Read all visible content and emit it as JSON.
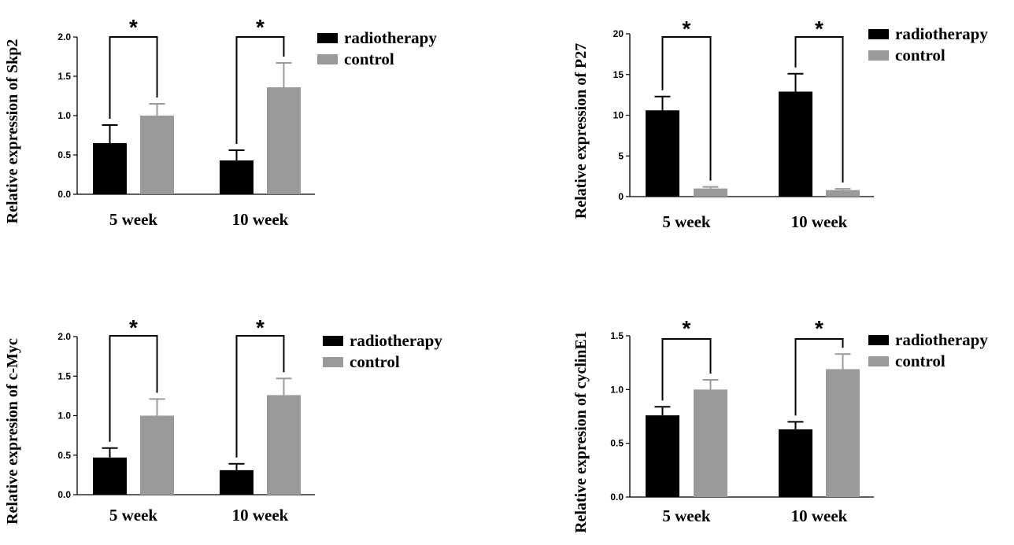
{
  "chart_data": [
    {
      "type": "bar",
      "ylabel": "Relative expression of Skp2",
      "categories": [
        "5 week",
        "10 week"
      ],
      "series": [
        {
          "name": "radiotherapy",
          "values": [
            0.65,
            0.43
          ],
          "errors": [
            0.23,
            0.13
          ]
        },
        {
          "name": "control",
          "values": [
            1.0,
            1.36
          ],
          "errors": [
            0.15,
            0.31
          ]
        }
      ],
      "ylim": [
        0,
        2.0
      ],
      "yticks": [
        "0.0",
        "0.5",
        "1.0",
        "1.5",
        "2.0"
      ],
      "significance": [
        "*",
        "*"
      ],
      "legend_position": "top-right",
      "colors": {
        "radiotherapy": "#000000",
        "control": "#9a9a9a"
      }
    },
    {
      "type": "bar",
      "ylabel": "Relative expression of P27",
      "categories": [
        "5 week",
        "10 week"
      ],
      "series": [
        {
          "name": "radiotherapy",
          "values": [
            10.6,
            12.9
          ],
          "errors": [
            1.7,
            2.2
          ]
        },
        {
          "name": "control",
          "values": [
            1.0,
            0.8
          ],
          "errors": [
            0.2,
            0.15
          ]
        }
      ],
      "ylim": [
        0,
        20
      ],
      "yticks": [
        "0",
        "5",
        "10",
        "15",
        "20"
      ],
      "significance": [
        "*",
        "*"
      ],
      "legend_position": "top-right",
      "colors": {
        "radiotherapy": "#000000",
        "control": "#9a9a9a"
      }
    },
    {
      "type": "bar",
      "ylabel": "Relative expresion of c-Myc",
      "categories": [
        "5 week",
        "10 week"
      ],
      "series": [
        {
          "name": "radiotherapy",
          "values": [
            0.47,
            0.31
          ],
          "errors": [
            0.12,
            0.08
          ]
        },
        {
          "name": "control",
          "values": [
            1.0,
            1.26
          ],
          "errors": [
            0.21,
            0.21
          ]
        }
      ],
      "ylim": [
        0,
        2.0
      ],
      "yticks": [
        "0.0",
        "0.5",
        "1.0",
        "1.5",
        "2.0"
      ],
      "significance": [
        "*",
        "*"
      ],
      "legend_position": "top-right",
      "colors": {
        "radiotherapy": "#000000",
        "control": "#9a9a9a"
      }
    },
    {
      "type": "bar",
      "ylabel": "Relative expresion of cyclinE1",
      "categories": [
        "5 week",
        "10 week"
      ],
      "series": [
        {
          "name": "radiotherapy",
          "values": [
            0.76,
            0.63
          ],
          "errors": [
            0.08,
            0.07
          ]
        },
        {
          "name": "control",
          "values": [
            1.0,
            1.19
          ],
          "errors": [
            0.09,
            0.14
          ]
        }
      ],
      "ylim": [
        0,
        1.5
      ],
      "yticks": [
        "0.0",
        "0.5",
        "1.0",
        "1.5"
      ],
      "significance": [
        "*",
        "*"
      ],
      "legend_position": "top-right",
      "colors": {
        "radiotherapy": "#000000",
        "control": "#9a9a9a"
      }
    }
  ]
}
